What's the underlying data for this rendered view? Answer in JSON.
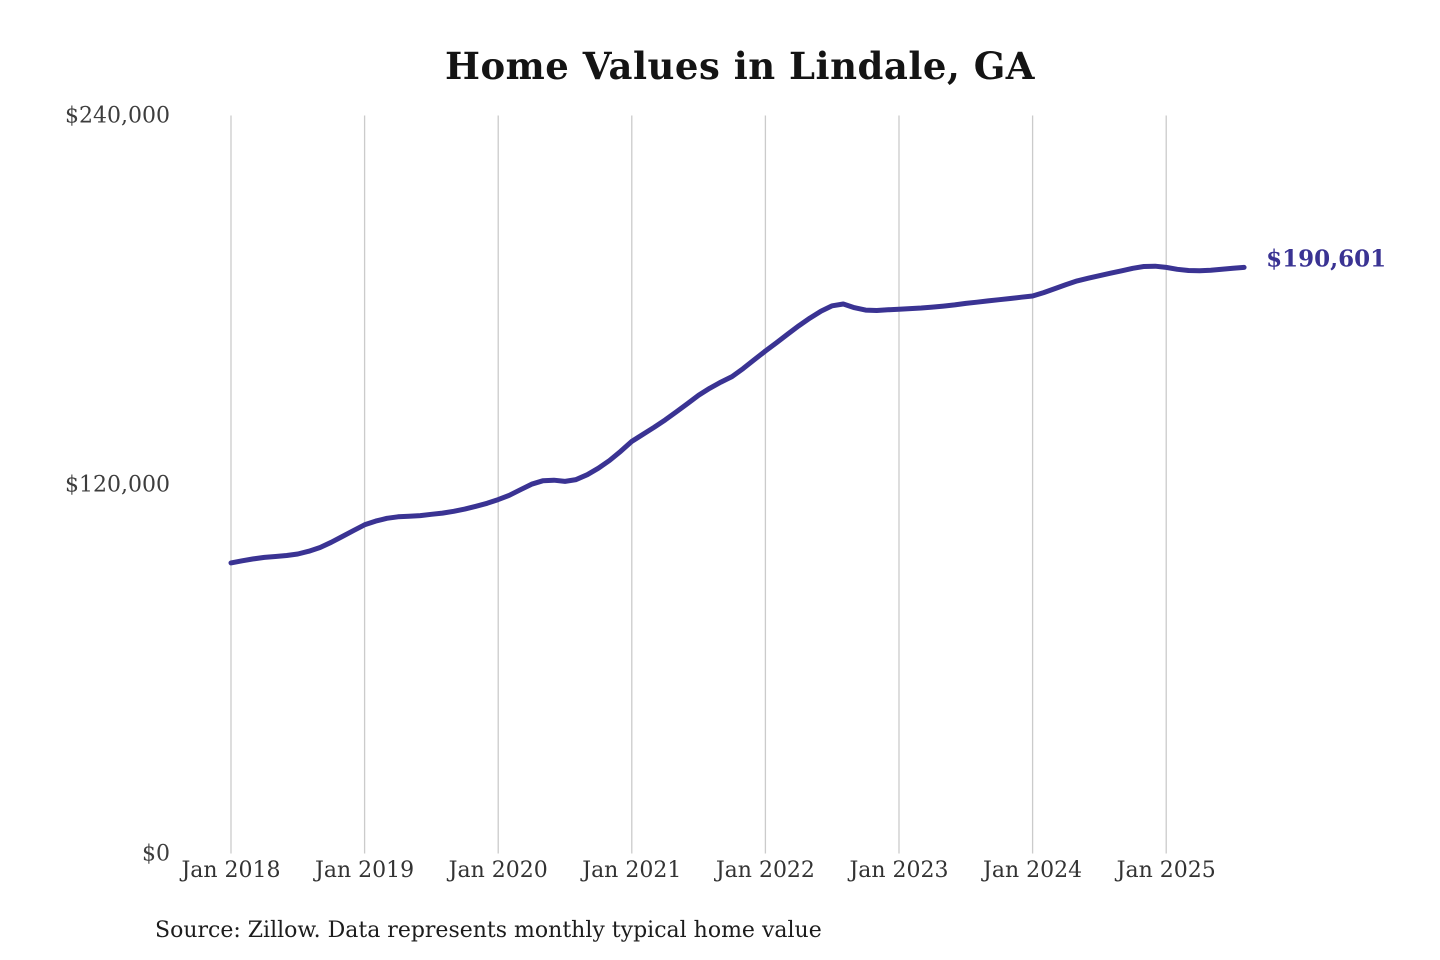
{
  "page": {
    "title": "Home Values in Lindale, GA",
    "source_note": "Source: Zillow. Data represents monthly typical home value"
  },
  "chart_data": {
    "type": "line",
    "title": "Home Values in Lindale, GA",
    "series_name": "Monthly typical home value",
    "x_start": "Jan 2018",
    "x_end": "Aug 2025",
    "x_interval": "monthly",
    "x_tick_labels": [
      "Jan 2018",
      "Jan 2019",
      "Jan 2020",
      "Jan 2021",
      "Jan 2022",
      "Jan 2023",
      "Jan 2024",
      "Jan 2025"
    ],
    "y_tick_labels": [
      "$240,000",
      "$120,000",
      "$0"
    ],
    "y_ticks": [
      240000,
      120000,
      0
    ],
    "ylim": [
      0,
      240000
    ],
    "grid": "vertical-only",
    "legend_position": "none",
    "end_label": "$190,601",
    "end_value": 190601,
    "line_color": "#3a3393",
    "gridline_color": "#cbcbcb",
    "values": [
      94500,
      95200,
      95800,
      96300,
      96600,
      96900,
      97400,
      98300,
      99500,
      101200,
      103100,
      105000,
      106900,
      108100,
      109000,
      109500,
      109700,
      109900,
      110300,
      110700,
      111300,
      112000,
      112900,
      113900,
      115100,
      116500,
      118300,
      120100,
      121200,
      121400,
      121000,
      121600,
      123200,
      125300,
      127800,
      130800,
      134000,
      136300,
      138600,
      141000,
      143600,
      146300,
      149000,
      151300,
      153300,
      155100,
      157700,
      160600,
      163400,
      166100,
      168900,
      171600,
      174100,
      176400,
      178100,
      178700,
      177500,
      176700,
      176600,
      176800,
      177000,
      177200,
      177400,
      177700,
      178000,
      178400,
      178900,
      179300,
      179700,
      180100,
      180500,
      180900,
      181300,
      182400,
      183700,
      185000,
      186200,
      187100,
      187900,
      188700,
      189500,
      190300,
      190900,
      191000,
      190600,
      190000,
      189600,
      189500,
      189700,
      190000,
      190300,
      190601
    ],
    "source": "Source: Zillow. Data represents monthly typical home value"
  }
}
